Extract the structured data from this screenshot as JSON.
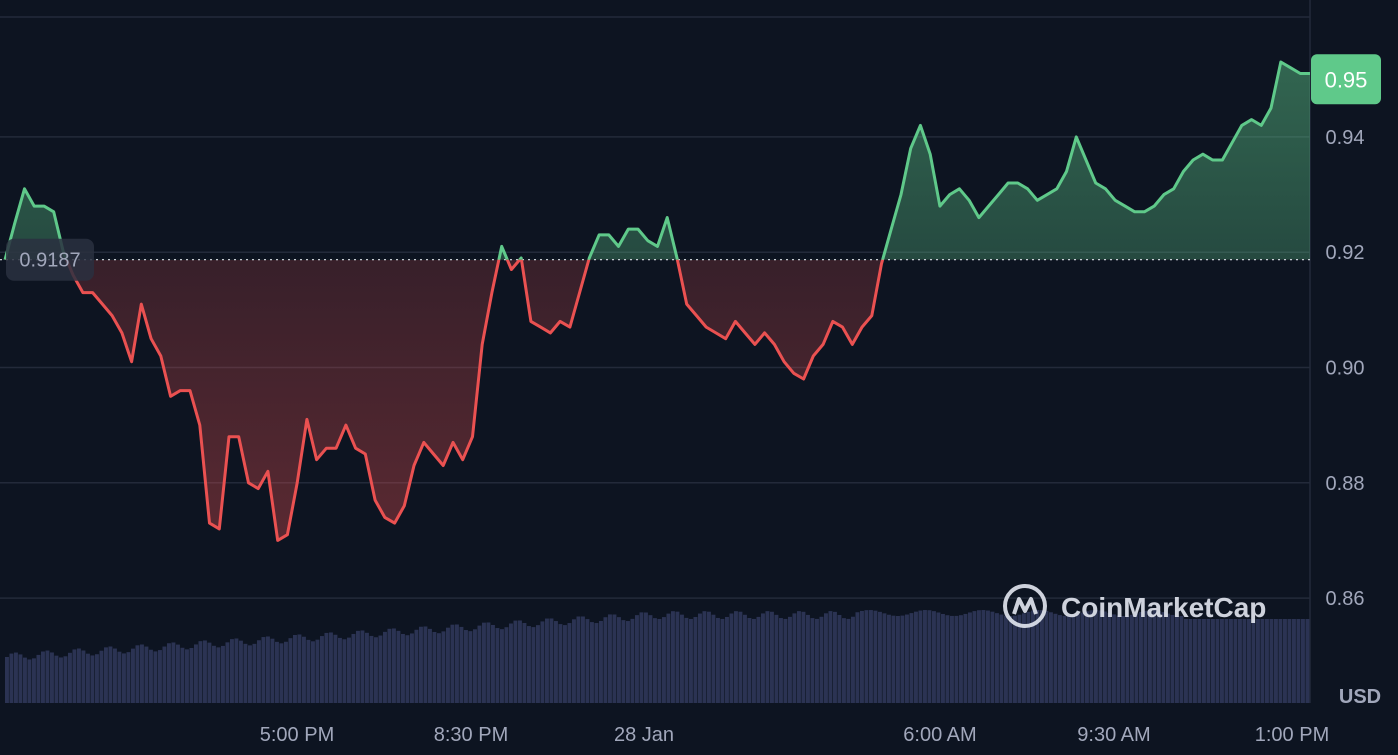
{
  "chart_data": {
    "type": "line",
    "yticks": [
      0.86,
      0.88,
      0.9,
      0.92,
      0.94
    ],
    "ylim": [
      0.8418,
      0.9608
    ],
    "xticks": [
      "5:00 PM",
      "8:30 PM",
      "28 Jan",
      "6:00 AM",
      "9:30 AM",
      "1:00 PM"
    ],
    "unit": "USD",
    "watermark": "CoinMarketCap",
    "baseline": {
      "value": 0.9187,
      "label": "0.9187"
    },
    "current": {
      "value": 0.95,
      "label": "0.95"
    },
    "colors": {
      "up": "#5fc98a",
      "down": "#ea5151",
      "volume": "#2b3353",
      "grid": "#232a3a",
      "background": "#0d1421"
    },
    "series": [
      {
        "values": [
          0.9187,
          0.925,
          0.931,
          0.928,
          0.928,
          0.927,
          0.92,
          0.916,
          0.913,
          0.913,
          0.911,
          0.909,
          0.906,
          0.901,
          0.911,
          0.905,
          0.902,
          0.895,
          0.896,
          0.896,
          0.89,
          0.873,
          0.872,
          0.888,
          0.888,
          0.88,
          0.879,
          0.882,
          0.87,
          0.871,
          0.88,
          0.891,
          0.884,
          0.886,
          0.886,
          0.89,
          0.886,
          0.885,
          0.877,
          0.874,
          0.873,
          0.876,
          0.883,
          0.887,
          0.885,
          0.883,
          0.887,
          0.884,
          0.888,
          0.904,
          0.913,
          0.921,
          0.917,
          0.919,
          0.908,
          0.907,
          0.906,
          0.908,
          0.907,
          0.913,
          0.919,
          0.923,
          0.923,
          0.921,
          0.924,
          0.924,
          0.922,
          0.921,
          0.926,
          0.919,
          0.911,
          0.909,
          0.907,
          0.906,
          0.905,
          0.908,
          0.906,
          0.904,
          0.906,
          0.904,
          0.901,
          0.899,
          0.898,
          0.902,
          0.904,
          0.908,
          0.907,
          0.904,
          0.907,
          0.909,
          0.918,
          0.924,
          0.93,
          0.938,
          0.942,
          0.937,
          0.928,
          0.93,
          0.931,
          0.929,
          0.926,
          0.928,
          0.93,
          0.932,
          0.932,
          0.931,
          0.929,
          0.93,
          0.931,
          0.934,
          0.94,
          0.936,
          0.932,
          0.931,
          0.929,
          0.928,
          0.927,
          0.927,
          0.928,
          0.93,
          0.931,
          0.934,
          0.936,
          0.937,
          0.936,
          0.936,
          0.939,
          0.942,
          0.943,
          0.942,
          0.945,
          0.953,
          0.952,
          0.951,
          0.951
        ]
      }
    ]
  }
}
